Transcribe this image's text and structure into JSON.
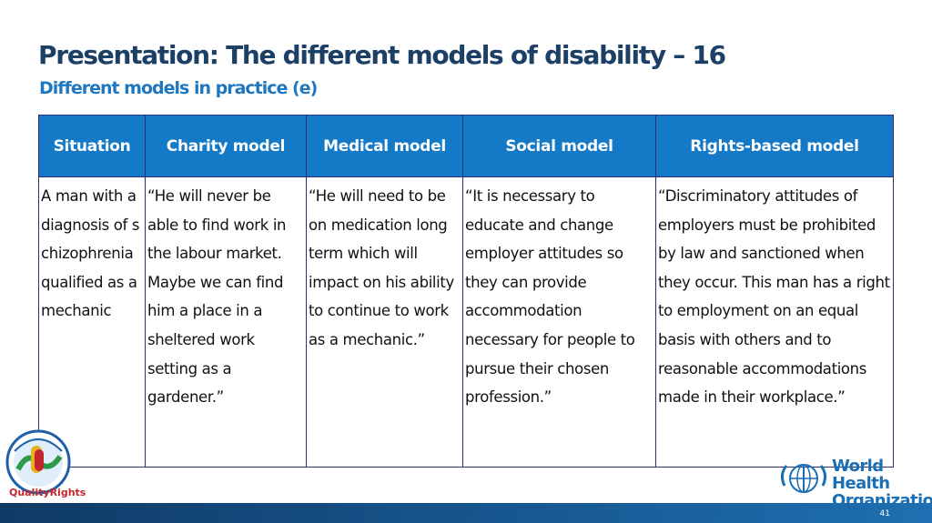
{
  "slide": {
    "title": "Presentation: The different models of disability – 16",
    "subtitle": "Different models in practice (e)",
    "page_number": "41"
  },
  "table": {
    "headers": [
      "Situation",
      "Charity model",
      "Medical model",
      "Social model",
      "Rights-based model"
    ],
    "row": [
      "A man with a diagnosis of schizophrenia qualified as a mechanic",
      "“He will never be able to find work in the labour market. Maybe we can find him a place in a sheltered work setting as a gardener.”",
      "“He will need to be on medication long term which will impact on his ability to continue to work as a mechanic.”",
      "“It is necessary to educate and change employer attitudes so they can provide accommodation necessary for people to pursue their chosen profession.”",
      "“Discriminatory attitudes of employers must be prohibited by law and sanctioned when they occur. This man has a right to employment on an equal basis with others and to reasonable accommodations made in their workplace.”"
    ]
  },
  "logos": {
    "left_brand": "QualityRights",
    "who_line1": "World Health",
    "who_line2": "Organization"
  },
  "colors": {
    "title": "#1c3f66",
    "subtitle": "#1f77c0",
    "header_bg": "#1479c7",
    "border": "#2a2f7a",
    "footer": "#1e6fb2"
  }
}
